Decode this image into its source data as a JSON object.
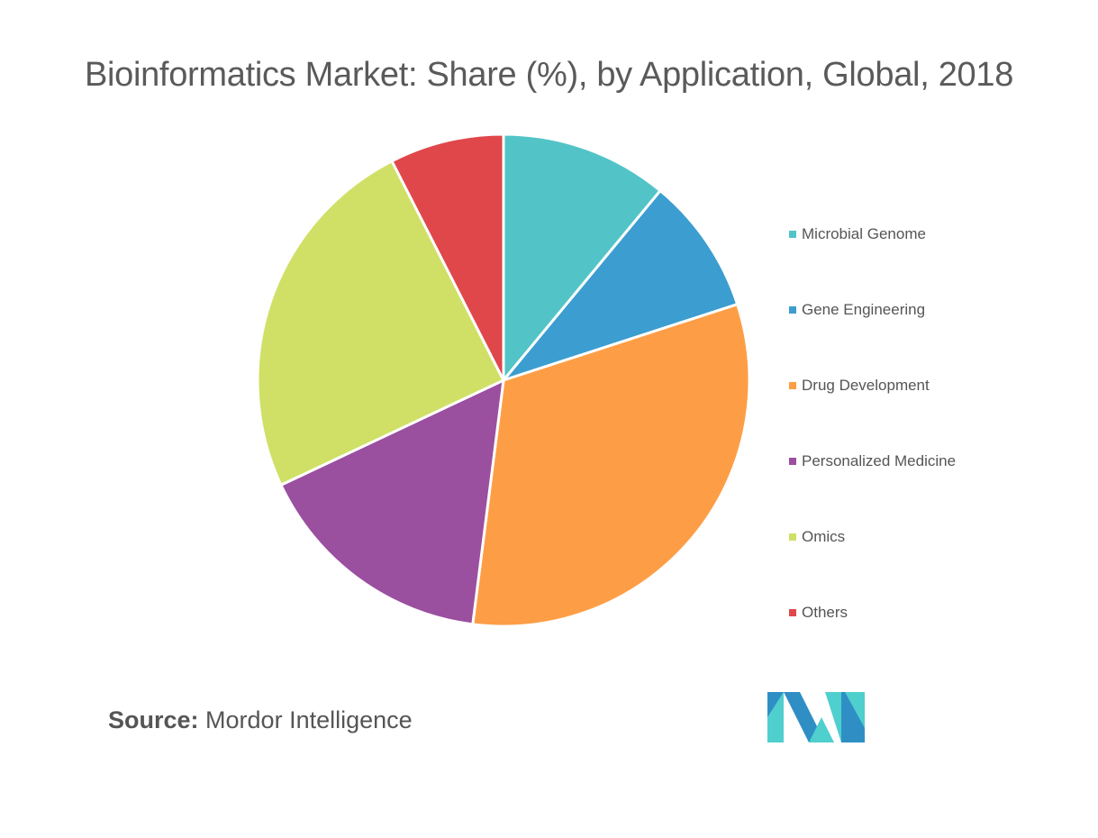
{
  "chart_data": {
    "type": "pie",
    "title": "Bioinformatics Market: Share (%), by Application, Global, 2018",
    "legend_position": "right",
    "slices": [
      {
        "label": "Microbial Genome",
        "value": 11,
        "color": "#52c4c7"
      },
      {
        "label": "Gene Engineering",
        "value": 9,
        "color": "#3c9dd0"
      },
      {
        "label": "Drug Development",
        "value": 32,
        "color": "#fd9e46"
      },
      {
        "label": "Personalized Medicine",
        "value": 16,
        "color": "#9b4f9f"
      },
      {
        "label": "Omics",
        "value": 24.5,
        "color": "#d0e067"
      },
      {
        "label": "Others",
        "value": 7.5,
        "color": "#e0474b"
      }
    ]
  },
  "source": {
    "key": "Source:",
    "value": "Mordor Intelligence"
  },
  "logo": {
    "colors": [
      "#2f8fc5",
      "#4fcfcd"
    ]
  }
}
